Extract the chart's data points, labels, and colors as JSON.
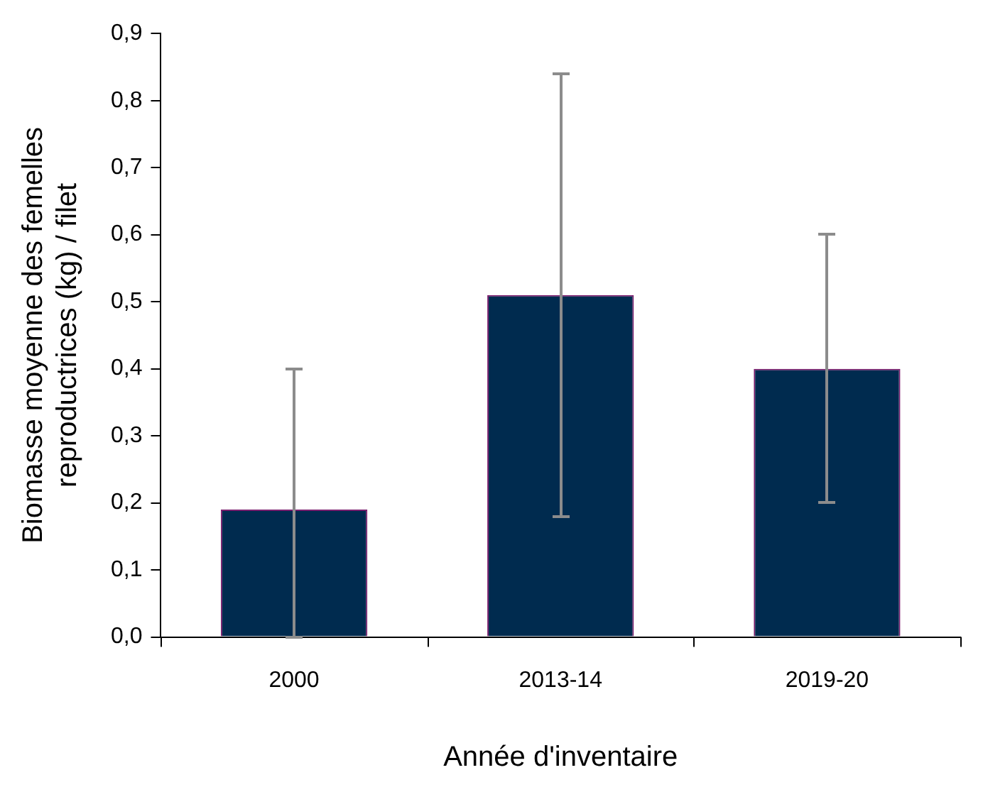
{
  "chart_data": {
    "type": "bar",
    "xlabel": "Année d'inventaire",
    "ylabel": "Biomasse moyenne des femelles\nreproductrices (kg) / filet",
    "categories": [
      "2000",
      "2013-14",
      "2019-20"
    ],
    "values": [
      0.19,
      0.51,
      0.4
    ],
    "color": "#002b4f",
    "errors": [
      [
        0,
        0.4
      ],
      [
        0.18,
        0.84
      ],
      [
        0.2,
        0.6
      ]
    ],
    "ylim": [
      0,
      0.9
    ],
    "yticks": [
      {
        "value": 0,
        "label": "0,0"
      },
      {
        "value": 0.1,
        "label": "0,1"
      },
      {
        "value": 0.2,
        "label": "0,2"
      },
      {
        "value": 0.3,
        "label": "0,3"
      },
      {
        "value": 0.4,
        "label": "0,4"
      },
      {
        "value": 0.5,
        "label": "0,5"
      },
      {
        "value": 0.6,
        "label": "0,6"
      },
      {
        "value": 0.7,
        "label": "0,7"
      },
      {
        "value": 0.8,
        "label": "0,8"
      },
      {
        "value": 0.9,
        "label": "0,9"
      }
    ],
    "grid": false,
    "legend": false
  }
}
